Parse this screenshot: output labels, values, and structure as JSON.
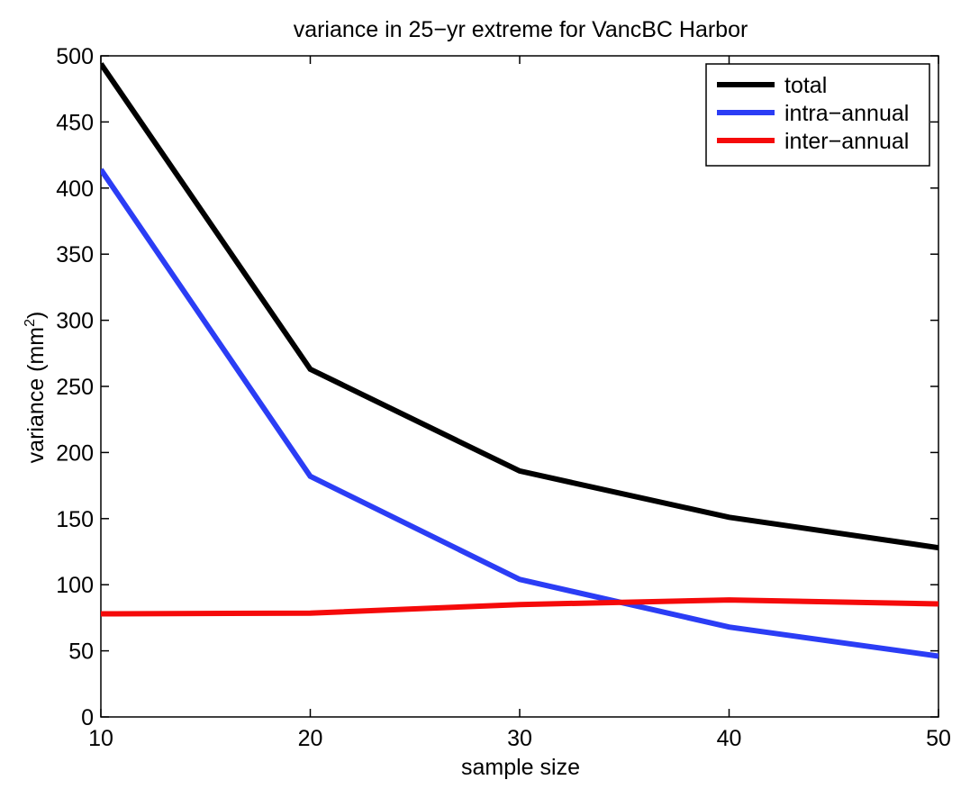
{
  "chart_data": {
    "type": "line",
    "title": "variance in 25−yr extreme for VancBC Harbor",
    "xlabel": "sample size",
    "ylabel": {
      "prefix": "variance (mm",
      "superscript": "2",
      "suffix": ")"
    },
    "x": [
      10,
      20,
      30,
      40,
      50
    ],
    "xlim": [
      10,
      50
    ],
    "ylim": [
      0,
      500
    ],
    "xticks": [
      10,
      20,
      30,
      40,
      50
    ],
    "yticks": [
      0,
      50,
      100,
      150,
      200,
      250,
      300,
      350,
      400,
      450,
      500
    ],
    "grid": false,
    "legend_position": "top-right",
    "series": [
      {
        "name": "total",
        "color": "#000000",
        "values": [
          494,
          263,
          186,
          151,
          128
        ]
      },
      {
        "name": "intra−annual",
        "color": "#2b3df5",
        "values": [
          414,
          182,
          104,
          68,
          46
        ]
      },
      {
        "name": "inter−annual",
        "color": "#f50a0a",
        "values": [
          78,
          78.5,
          85,
          88.5,
          85.5
        ]
      }
    ]
  }
}
